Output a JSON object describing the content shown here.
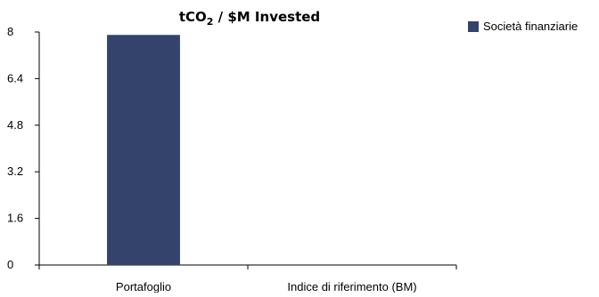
{
  "chart_data": {
    "type": "bar",
    "title": {
      "prefix": "tCO",
      "subscript": "2",
      "suffix": " / $M Invested"
    },
    "categories": [
      "Portafoglio",
      "Indice di riferimento (BM)"
    ],
    "series": [
      {
        "name": "Società finanziarie",
        "values": [
          7.9,
          0
        ],
        "color": "#33436b"
      }
    ],
    "ylim": [
      0,
      8
    ],
    "yticks": [
      0,
      1.6,
      3.2,
      4.8,
      6.4,
      8
    ],
    "ytick_labels": [
      "0",
      "1.6",
      "3.2",
      "4.8",
      "6.4",
      "8"
    ],
    "grid": false,
    "legend_position": "top-right",
    "xlabel": "",
    "ylabel": ""
  }
}
